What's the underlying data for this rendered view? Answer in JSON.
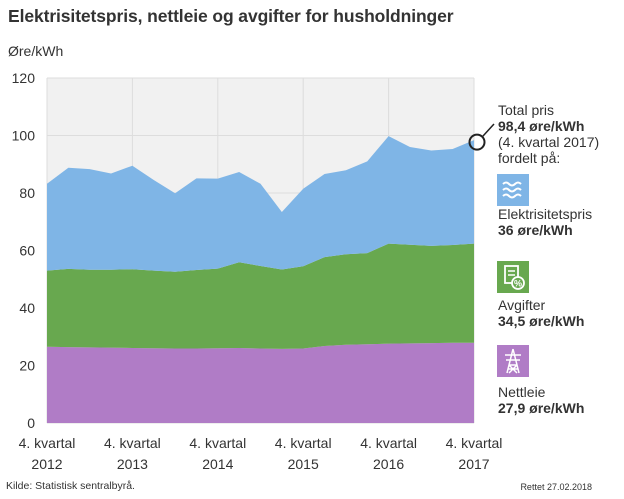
{
  "title": "Elektrisitetspris, nettleie og avgifter for husholdninger",
  "source": "Kilde: Statistisk sentralbyrå.",
  "corrected": "Rettet 27.02.2018",
  "annotation": {
    "line1": "Total pris",
    "line2": "98,4 øre/kWh",
    "line3": "(4. kvartal 2017)",
    "line4": "fordelt på:"
  },
  "legend": {
    "electricity": {
      "label": "Elektrisitetspris",
      "value": "36 øre/kWh",
      "color": "#7fb5e6",
      "icon": "electricity-waves-icon"
    },
    "fees": {
      "label": "Avgifter",
      "value": "34,5 øre/kWh",
      "color": "#68a84f",
      "icon": "tax-document-icon"
    },
    "grid": {
      "label": "Nettleie",
      "value": "27,9 øre/kWh",
      "color": "#b07cc6",
      "icon": "power-pylon-icon"
    }
  },
  "chart_data": {
    "type": "area",
    "stacked": true,
    "ylabel": "Øre/kWh",
    "xlabel": "",
    "ylim": [
      0,
      120
    ],
    "yticks": [
      0,
      20,
      40,
      60,
      80,
      100,
      120
    ],
    "xtick_labels": [
      {
        "line1": "4. kvartal",
        "line2": "2012"
      },
      {
        "line1": "4. kvartal",
        "line2": "2013"
      },
      {
        "line1": "4. kvartal",
        "line2": "2014"
      },
      {
        "line1": "4. kvartal",
        "line2": "2015"
      },
      {
        "line1": "4. kvartal",
        "line2": "2016"
      },
      {
        "line1": "4. kvartal",
        "line2": "2017"
      }
    ],
    "x": [
      "2012K4",
      "2013K1",
      "2013K2",
      "2013K3",
      "2013K4",
      "2014K1",
      "2014K2",
      "2014K3",
      "2014K4",
      "2015K1",
      "2015K2",
      "2015K3",
      "2015K4",
      "2016K1",
      "2016K2",
      "2016K3",
      "2016K4",
      "2017K1",
      "2017K2",
      "2017K3",
      "2017K4"
    ],
    "series": [
      {
        "name": "Nettleie",
        "color": "#b07cc6",
        "values": [
          26.5,
          26.4,
          26.3,
          26.2,
          26.1,
          26.0,
          25.9,
          25.9,
          26.0,
          26.1,
          25.9,
          25.8,
          25.9,
          26.8,
          27.2,
          27.4,
          27.6,
          27.7,
          27.8,
          27.9,
          27.9
        ]
      },
      {
        "name": "Avgifter",
        "color": "#68a84f",
        "values": [
          26.5,
          27.2,
          27.0,
          27.1,
          27.4,
          27.0,
          26.7,
          27.3,
          27.7,
          29.8,
          28.7,
          27.6,
          28.6,
          30.9,
          31.5,
          31.7,
          34.8,
          34.3,
          33.8,
          34.0,
          34.5
        ]
      },
      {
        "name": "Elektrisitetspris",
        "color": "#7fb5e6",
        "values": [
          30.2,
          35.2,
          35.0,
          33.5,
          36.0,
          31.5,
          27.3,
          31.9,
          31.3,
          31.4,
          28.6,
          20.0,
          27.0,
          28.9,
          29.2,
          31.9,
          37.4,
          34.0,
          33.2,
          33.4,
          36.0
        ]
      }
    ],
    "total_last": 98.4
  }
}
